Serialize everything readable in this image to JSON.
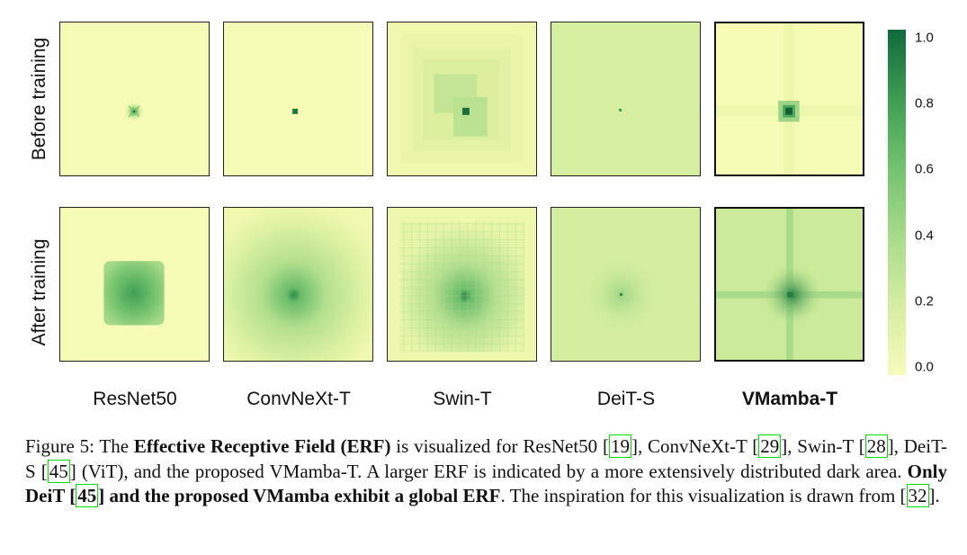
{
  "figure": {
    "row_labels": [
      "Before training",
      "After training"
    ],
    "models": [
      "ResNet50",
      "ConvNeXt-T",
      "Swin-T",
      "DeiT-S",
      "VMamba-T"
    ],
    "colorbar": {
      "ticks": [
        "1.0",
        "0.8",
        "0.6",
        "0.4",
        "0.2",
        "0.0"
      ],
      "colormap": [
        "#f7fcb9",
        "#d5eea2",
        "#a8dc8a",
        "#72c36e",
        "#3d9e52",
        "#0e6a3a"
      ]
    }
  },
  "caption": {
    "prefix": "Figure 5: The ",
    "bold1": "Effective Receptive Field (ERF)",
    "t1": " is visualized for ResNet50 [",
    "ref1": "19",
    "t2": "], ConvNeXt-T [",
    "ref2": "29",
    "t3": "], Swin-T [",
    "ref3": "28",
    "t4": "], DeiT-S [",
    "ref4": "45",
    "t5": "] (ViT), and the proposed VMamba-T. A larger ERF is indicated by a more extensively distributed dark area. ",
    "bold2a": "Only DeiT [",
    "ref5": "45",
    "bold2b": "] and the proposed VMamba exhibit a global ERF",
    "t6": ". The inspiration for this visualization is drawn from [",
    "ref6": "32",
    "t7": "]."
  }
}
